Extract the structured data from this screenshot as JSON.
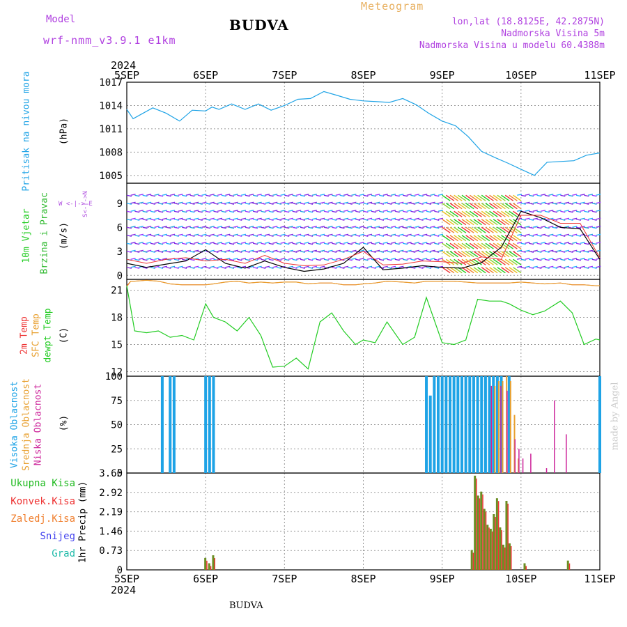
{
  "header": {
    "model_label": "Model",
    "model_name": "wrf-nmm_v3.9.1 e1km",
    "title": "BUDVA",
    "meteogram_label": "Meteogram",
    "lonlat": "lon,lat (18.8125E, 42.2875N)",
    "elevation": "Nadmorska Visina 5m",
    "model_elevation": "Nadmorska Visina u modelu 60.4388m",
    "footer_title": "BUDVA",
    "watermark": "made by Angel"
  },
  "colors": {
    "pressure": "#1ea3e6",
    "wind_label": "#22cc22",
    "wind_label2": "#33bb33",
    "compass": "#b050e0",
    "temp2m": "#ee3333",
    "sfc": "#e8a030",
    "dewpt": "#22cc22",
    "cloud_high": "#1ea3e6",
    "cloud_mid": "#e8a030",
    "cloud_low": "#cc2299",
    "precip_total": "#22bb22",
    "precip_conv": "#ee3333",
    "precip_strat": "#f08030",
    "snow": "#4444ee",
    "grad": "#22bbaa",
    "header_purple": "#b040e0",
    "header_orange": "#e8b060"
  },
  "chart_data": [
    {
      "type": "line",
      "name": "pressure",
      "ylabel": "Pritisak na nivou mora",
      "unit": "(hPa)",
      "ylim": [
        1004,
        1017
      ],
      "yticks": [
        1005,
        1008,
        1011,
        1014,
        1017
      ],
      "x_day_start": 5,
      "x_days": [
        0,
        0.08,
        0.17,
        0.33,
        0.5,
        0.67,
        0.83,
        1.0,
        1.08,
        1.17,
        1.33,
        1.5,
        1.67,
        1.83,
        2.0,
        2.17,
        2.33,
        2.5,
        2.67,
        2.83,
        3.0,
        3.17,
        3.33,
        3.5,
        3.67,
        3.83,
        4.0,
        4.17,
        4.33,
        4.5,
        4.67,
        4.83,
        5.0,
        5.17,
        5.33,
        5.5,
        5.67,
        5.83,
        6.0
      ],
      "values": [
        1013.5,
        1012.3,
        1012.8,
        1013.7,
        1013.0,
        1012.0,
        1013.4,
        1013.3,
        1013.8,
        1013.5,
        1014.2,
        1013.5,
        1014.2,
        1013.4,
        1014.0,
        1014.8,
        1014.9,
        1015.8,
        1015.3,
        1014.8,
        1014.6,
        1014.5,
        1014.4,
        1014.9,
        1014.1,
        1013.0,
        1012.0,
        1011.4,
        1010.0,
        1008.1,
        1007.3,
        1006.6,
        1005.8,
        1005.0,
        1006.7,
        1006.8,
        1006.9,
        1007.6,
        1007.9
      ]
    },
    {
      "type": "line",
      "name": "wind",
      "ylabel": "10m Vjetar",
      "ylabel2": "Brzina i Pravac",
      "unit": "(m/s)",
      "compass": "W <-|-> E",
      "compass2": "S<-|->N",
      "ylim": [
        -0.5,
        11.5
      ],
      "yticks": [
        0,
        3,
        6,
        9
      ],
      "x_days": [
        0,
        0.25,
        0.5,
        0.75,
        1.0,
        1.25,
        1.5,
        1.75,
        2.0,
        2.25,
        2.5,
        2.75,
        3.0,
        3.25,
        3.5,
        3.75,
        4.0,
        4.25,
        4.5,
        4.75,
        5.0,
        5.25,
        5.5,
        5.75,
        6.0
      ],
      "speed": [
        1.5,
        1.0,
        1.4,
        1.8,
        3.2,
        1.5,
        0.9,
        1.8,
        1.0,
        0.5,
        0.8,
        1.5,
        3.5,
        0.7,
        0.9,
        1.2,
        1.0,
        0.9,
        1.6,
        3.5,
        8.0,
        7.2,
        6.0,
        5.8,
        2.0
      ],
      "gust": [
        2.0,
        1.5,
        2.0,
        2.2,
        1.8,
        2.0,
        1.5,
        2.5,
        1.5,
        1.2,
        1.3,
        2.0,
        3.0,
        1.3,
        1.4,
        1.8,
        1.7,
        1.5,
        2.3,
        2.0,
        7.5,
        7.5,
        6.5,
        6.5,
        2.2
      ]
    },
    {
      "type": "line",
      "name": "temperature",
      "ylabels": [
        "2m Temp",
        "SFC Temp",
        "dewpt Temp"
      ],
      "unit": "(C)",
      "ylim": [
        11.5,
        22.2
      ],
      "yticks": [
        12,
        15,
        18,
        21
      ],
      "x_days": [
        0,
        0.05,
        0.1,
        0.25,
        0.4,
        0.55,
        0.7,
        0.85,
        1.0,
        1.1,
        1.25,
        1.4,
        1.55,
        1.7,
        1.85,
        2.0,
        2.15,
        2.3,
        2.45,
        2.6,
        2.75,
        2.9,
        3.0,
        3.15,
        3.3,
        3.5,
        3.65,
        3.8,
        4.0,
        4.15,
        4.3,
        4.45,
        4.6,
        4.75,
        4.85,
        5.0,
        5.15,
        5.3,
        5.5,
        5.65,
        5.8,
        5.95,
        6.0
      ],
      "dewpt": [
        21.5,
        19.0,
        16.5,
        16.3,
        16.5,
        15.8,
        16.0,
        15.5,
        19.5,
        18.0,
        17.5,
        16.5,
        18.0,
        16.0,
        12.5,
        12.6,
        13.5,
        12.3,
        17.5,
        18.5,
        16.5,
        15.0,
        15.5,
        15.2,
        17.5,
        15.0,
        15.8,
        20.2,
        15.2,
        15.0,
        15.5,
        20.0,
        19.8,
        19.8,
        19.5,
        18.8,
        18.3,
        18.7,
        19.8,
        18.5,
        15.0,
        15.6,
        15.5
      ],
      "sfc": [
        21.4,
        22.0,
        22.0,
        22.1,
        22.0,
        21.7,
        21.6,
        21.6,
        21.6,
        21.7,
        21.9,
        22.0,
        21.8,
        21.9,
        21.8,
        21.9,
        21.9,
        21.7,
        21.8,
        21.8,
        21.6,
        21.6,
        21.7,
        21.8,
        22.0,
        21.9,
        21.8,
        22.0,
        22.0,
        22.0,
        21.9,
        21.8,
        21.8,
        21.8,
        21.8,
        21.9,
        21.8,
        21.7,
        21.8,
        21.6,
        21.6,
        21.5,
        21.5
      ],
      "temp2m": [
        21.5,
        22.0,
        22.0,
        22.1,
        22.0,
        21.7,
        21.6,
        21.6,
        21.6,
        21.7,
        21.9,
        22.0,
        21.8,
        21.9,
        21.8,
        21.9,
        21.9,
        21.7,
        21.8,
        21.8,
        21.6,
        21.6,
        21.7,
        21.8,
        22.0,
        21.9,
        21.8,
        22.0,
        22.0,
        22.0,
        21.9,
        21.8,
        21.8,
        21.8,
        21.8,
        21.9,
        21.8,
        21.7,
        21.8,
        21.6,
        21.6,
        21.5,
        21.5
      ]
    },
    {
      "type": "bar",
      "name": "cloud",
      "ylabels": [
        "Visoka Oblacnost",
        "Srednja Oblacnost",
        "Niska Oblacnost"
      ],
      "unit": "(%)",
      "ylim": [
        0,
        100
      ],
      "yticks": [
        0,
        25,
        50,
        75,
        100
      ],
      "high_bars": [
        [
          0.45,
          100
        ],
        [
          0.55,
          100
        ],
        [
          0.6,
          100
        ],
        [
          1.0,
          100
        ],
        [
          1.05,
          100
        ],
        [
          1.1,
          100
        ],
        [
          3.8,
          100
        ],
        [
          3.85,
          80
        ],
        [
          3.9,
          100
        ],
        [
          3.95,
          100
        ],
        [
          4.0,
          100
        ],
        [
          4.05,
          100
        ],
        [
          4.1,
          100
        ],
        [
          4.15,
          100
        ],
        [
          4.2,
          100
        ],
        [
          4.25,
          100
        ],
        [
          4.3,
          100
        ],
        [
          4.35,
          100
        ],
        [
          4.4,
          100
        ],
        [
          4.45,
          100
        ],
        [
          4.5,
          100
        ],
        [
          4.55,
          100
        ],
        [
          4.6,
          100
        ],
        [
          4.65,
          100
        ],
        [
          4.7,
          100
        ],
        [
          4.75,
          100
        ],
        [
          4.85,
          100
        ],
        [
          6.0,
          100
        ]
      ],
      "mid_bars": [
        [
          4.65,
          90
        ],
        [
          4.7,
          95
        ],
        [
          4.75,
          95
        ],
        [
          4.8,
          100
        ],
        [
          4.85,
          95
        ],
        [
          4.9,
          60
        ],
        [
          4.95,
          15
        ]
      ],
      "low_bars": [
        [
          4.6,
          90
        ],
        [
          4.72,
          90
        ],
        [
          4.8,
          85
        ],
        [
          4.9,
          35
        ],
        [
          4.95,
          25
        ],
        [
          5.0,
          15
        ],
        [
          5.1,
          20
        ],
        [
          5.3,
          5
        ],
        [
          5.4,
          75
        ],
        [
          5.55,
          40
        ]
      ]
    },
    {
      "type": "bar",
      "name": "precipitation",
      "ylabels": [
        "Ukupna Kisa",
        "Konvek.Kisa",
        "Zaledj.Kisa",
        "Snijeg",
        "Grad"
      ],
      "unit": "1hr Precip (mm)",
      "ylim": [
        0,
        3.65
      ],
      "yticks": [
        0,
        0.73,
        1.46,
        2.19,
        2.92,
        3.65
      ],
      "ytick_labels": [
        "0",
        "0.73",
        "1.46",
        "2.19",
        "2.92",
        "3.65"
      ],
      "bars": [
        [
          1.0,
          0.45
        ],
        [
          1.05,
          0.25
        ],
        [
          1.1,
          0.55
        ],
        [
          4.38,
          0.75
        ],
        [
          4.42,
          3.55
        ],
        [
          4.46,
          2.8
        ],
        [
          4.5,
          2.95
        ],
        [
          4.54,
          2.3
        ],
        [
          4.58,
          1.7
        ],
        [
          4.62,
          1.55
        ],
        [
          4.66,
          2.1
        ],
        [
          4.7,
          2.7
        ],
        [
          4.74,
          1.6
        ],
        [
          4.78,
          0.95
        ],
        [
          4.82,
          2.6
        ],
        [
          4.86,
          1.0
        ],
        [
          5.05,
          0.25
        ],
        [
          5.6,
          0.35
        ]
      ]
    }
  ],
  "x_axis": {
    "year": "2024",
    "ticks": [
      "5SEP",
      "6SEP",
      "7SEP",
      "8SEP",
      "9SEP",
      "10SEP",
      "11SEP"
    ]
  }
}
